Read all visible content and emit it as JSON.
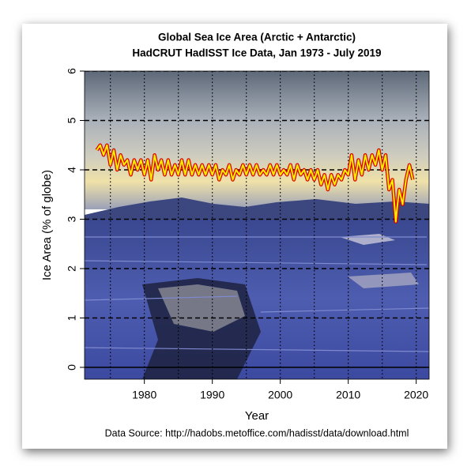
{
  "chart_data": {
    "type": "line",
    "title": "Global Sea Ice Area (Arctic + Antarctic)",
    "subtitle": "HadCRUT HadISST Ice Data, Jan 1973 - July 2019",
    "x_label": "Year",
    "y_label": "Ice Area (% of globe)",
    "source": "Data Source: http://hadobs.metoffice.com/hadisst/data/download.html",
    "xlim": [
      1971.2,
      2021.9
    ],
    "ylim": [
      -0.24,
      6
    ],
    "xticks": [
      1980,
      1990,
      2000,
      2010,
      2020
    ],
    "yticks": [
      0,
      1,
      2,
      3,
      4,
      5,
      6
    ],
    "x_grid": [
      1975,
      1980,
      1985,
      1990,
      1995,
      2000,
      2005,
      2010,
      2015,
      2020
    ],
    "grid": true,
    "series": [
      {
        "color": "#ffee00",
        "outline_color": "#dd0000",
        "x": [
          1973.0,
          1973.5,
          1974.0,
          1974.5,
          1975.0,
          1975.5,
          1976.0,
          1976.5,
          1977.0,
          1977.5,
          1978.0,
          1978.5,
          1979.0,
          1979.5,
          1980.0,
          1980.5,
          1981.0,
          1981.5,
          1982.0,
          1982.5,
          1983.0,
          1983.5,
          1984.0,
          1984.5,
          1985.0,
          1985.5,
          1986.0,
          1986.5,
          1987.0,
          1987.5,
          1988.0,
          1988.5,
          1989.0,
          1989.5,
          1990.0,
          1990.5,
          1991.0,
          1991.5,
          1992.0,
          1992.5,
          1993.0,
          1993.5,
          1994.0,
          1994.5,
          1995.0,
          1995.5,
          1996.0,
          1996.5,
          1997.0,
          1997.5,
          1998.0,
          1998.5,
          1999.0,
          1999.5,
          2000.0,
          2000.5,
          2001.0,
          2001.5,
          2002.0,
          2002.5,
          2003.0,
          2003.5,
          2004.0,
          2004.5,
          2005.0,
          2005.5,
          2006.0,
          2006.5,
          2007.0,
          2007.5,
          2008.0,
          2008.5,
          2009.0,
          2009.5,
          2010.0,
          2010.5,
          2011.0,
          2011.5,
          2012.0,
          2012.5,
          2013.0,
          2013.5,
          2014.0,
          2014.5,
          2015.0,
          2015.5,
          2016.0,
          2016.5,
          2017.0,
          2017.25,
          2017.5,
          2018.0,
          2018.5,
          2019.0,
          2019.5
        ],
        "values": [
          4.4,
          4.5,
          4.3,
          4.5,
          4.1,
          4.4,
          4.0,
          4.3,
          4.1,
          4.2,
          3.9,
          4.2,
          4.0,
          4.2,
          3.9,
          4.2,
          3.8,
          4.3,
          4.0,
          4.2,
          3.9,
          4.2,
          3.9,
          4.1,
          3.9,
          4.2,
          3.9,
          4.2,
          3.9,
          4.1,
          3.9,
          4.1,
          3.9,
          4.1,
          3.9,
          4.1,
          3.8,
          4.0,
          3.9,
          4.1,
          3.8,
          4.0,
          3.9,
          4.1,
          3.9,
          4.1,
          3.9,
          4.1,
          3.9,
          4.0,
          3.9,
          4.1,
          3.9,
          4.1,
          3.9,
          4.0,
          3.9,
          4.1,
          3.8,
          4.1,
          3.9,
          4.0,
          3.8,
          4.0,
          3.8,
          4.0,
          3.7,
          3.9,
          3.6,
          3.9,
          3.7,
          3.9,
          3.8,
          4.0,
          3.9,
          4.3,
          3.8,
          4.2,
          3.9,
          4.3,
          4.0,
          4.3,
          4.1,
          4.4,
          4.0,
          4.3,
          3.6,
          3.8,
          2.95,
          3.3,
          3.6,
          3.3,
          3.8,
          4.1,
          3.8
        ]
      }
    ]
  }
}
